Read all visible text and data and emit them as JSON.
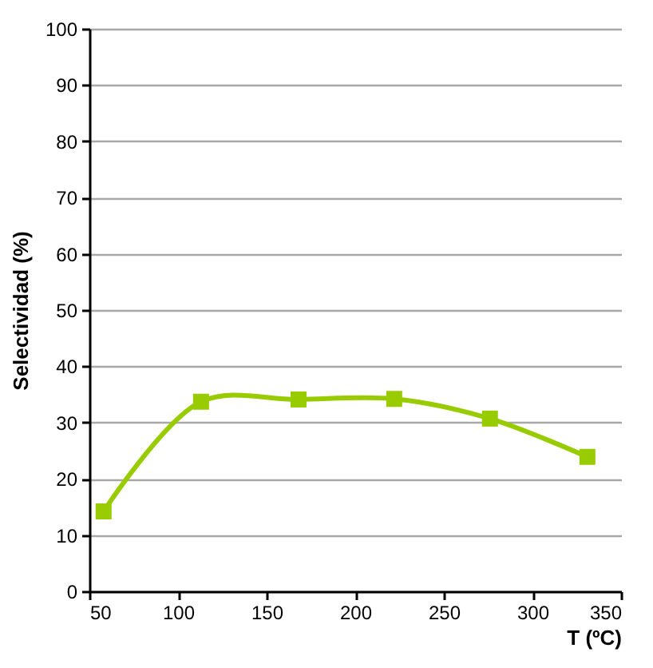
{
  "chart_data": {
    "type": "line",
    "xlabel": "T (ºC)",
    "ylabel": "Selectividad (%)",
    "x": [
      58,
      113,
      168,
      222,
      276,
      331
    ],
    "series": [
      {
        "color": "#99cc00",
        "values": [
          14.2,
          33.7,
          34.1,
          34.2,
          30.7,
          23.9
        ]
      }
    ],
    "xlim": [
      50,
      350
    ],
    "ylim": [
      0,
      100
    ],
    "xticks": [
      50,
      100,
      150,
      200,
      250,
      300,
      350
    ],
    "yticks": [
      0,
      10,
      20,
      30,
      40,
      50,
      60,
      70,
      80,
      90,
      100
    ],
    "grid": "y",
    "marker": "square",
    "line_style": "solid"
  }
}
